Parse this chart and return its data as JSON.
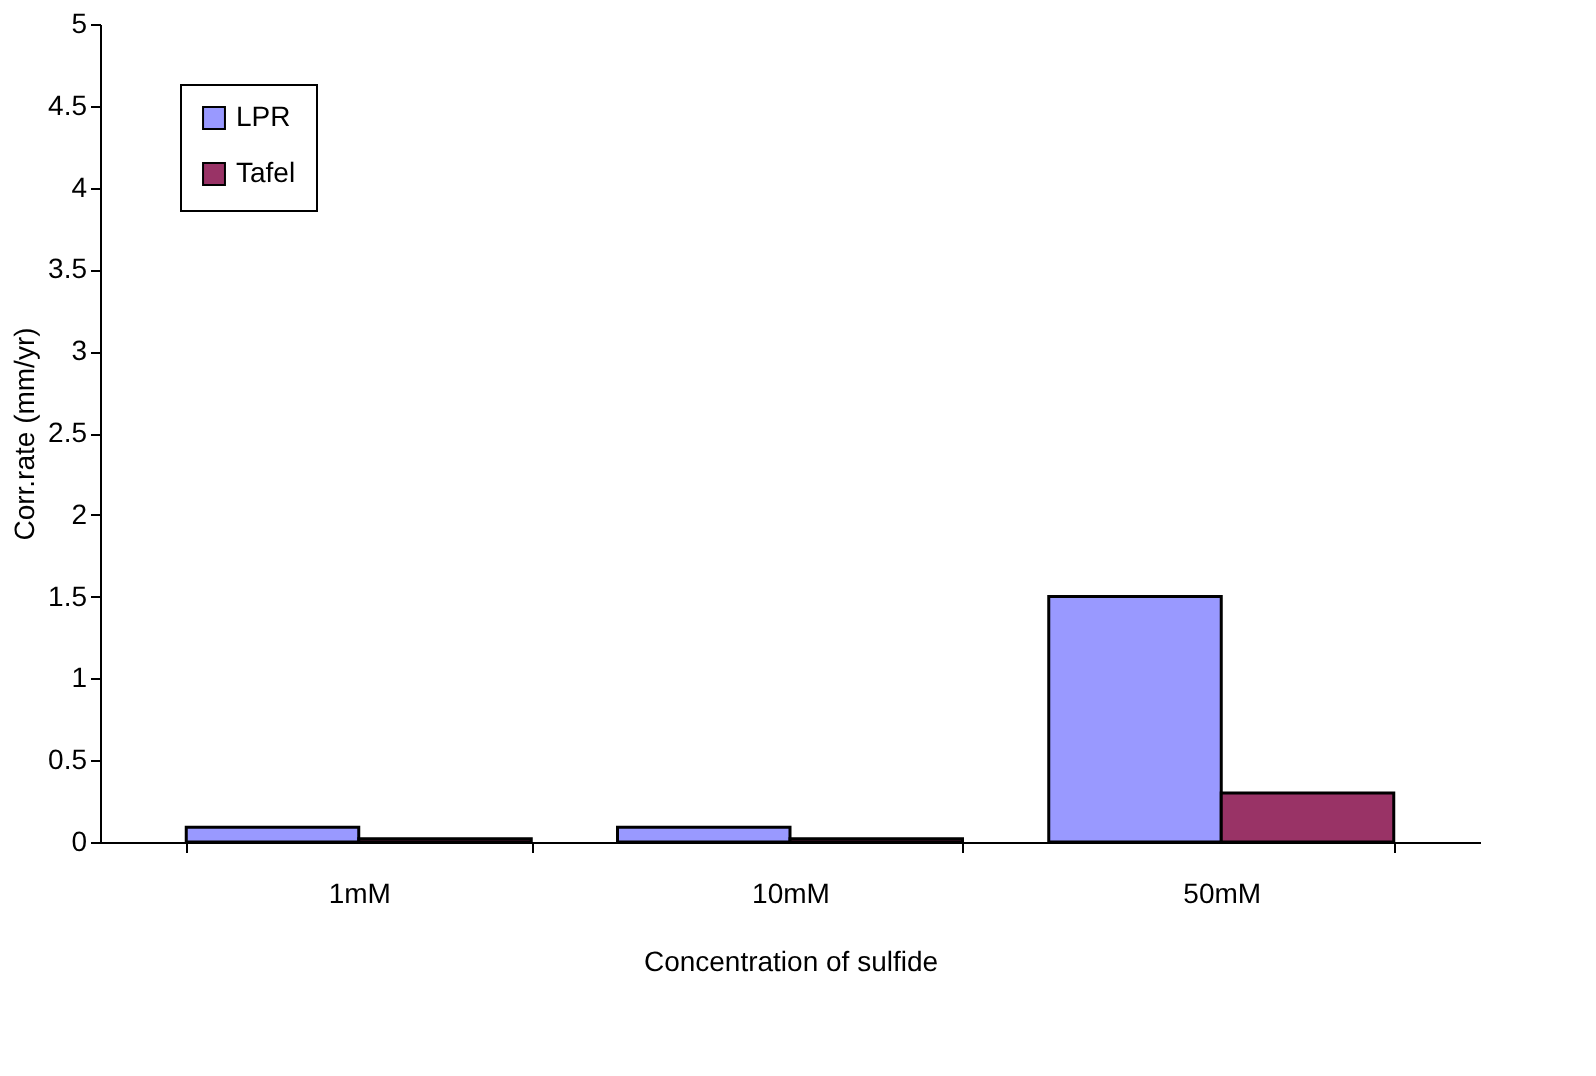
{
  "chart_data": {
    "type": "bar",
    "xlabel": "Concentration of sulfide",
    "ylabel": "Corr.rate (mm/yr)",
    "categories": [
      "1mM",
      "10mM",
      "50mM"
    ],
    "series": [
      {
        "name": "LPR",
        "color": "#9999ff",
        "values": [
          0.09,
          0.09,
          1.5
        ]
      },
      {
        "name": "Tafel",
        "color": "#993366",
        "values": [
          0.02,
          0.02,
          0.3
        ]
      }
    ],
    "ylim": [
      0,
      5
    ],
    "yticks": [
      0,
      0.5,
      1,
      1.5,
      2,
      2.5,
      3,
      3.5,
      4,
      4.5,
      5
    ],
    "grid": false,
    "legend": "top left"
  }
}
